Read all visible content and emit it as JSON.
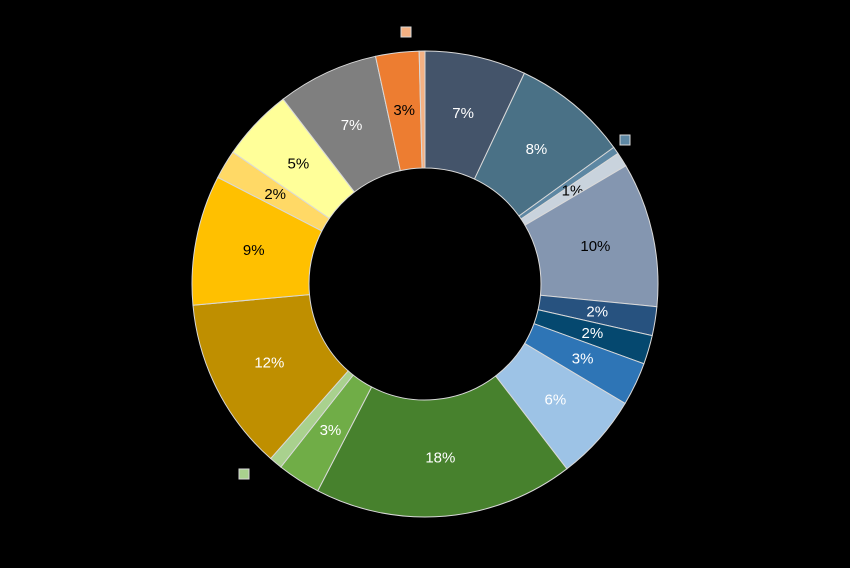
{
  "chart_data": {
    "type": "pie",
    "donut": true,
    "title": "",
    "legend": "none",
    "slices": [
      {
        "value": 7,
        "label": "7%",
        "color": "#44546A",
        "label_color": "#FFFFFF"
      },
      {
        "value": 8,
        "label": "8%",
        "color": "#4A7186",
        "label_color": "#FFFFFF"
      },
      {
        "value": 0.5,
        "label": "",
        "color": "#5D87A3",
        "label_color": "#FFFFFF"
      },
      {
        "value": 1,
        "label": "1%",
        "color": "#C9D3DD",
        "label_color": "#000000"
      },
      {
        "value": 10,
        "label": "10%",
        "color": "#8496B0",
        "label_color": "#000000"
      },
      {
        "value": 2,
        "label": "2%",
        "color": "#27527F",
        "label_color": "#FFFFFF"
      },
      {
        "value": 2,
        "label": "2%",
        "color": "#05486F",
        "label_color": "#FFFFFF"
      },
      {
        "value": 3,
        "label": "3%",
        "color": "#2E75B6",
        "label_color": "#FFFFFF"
      },
      {
        "value": 6,
        "label": "6%",
        "color": "#9DC3E6",
        "label_color": "#FFFFFF"
      },
      {
        "value": 18,
        "label": "18%",
        "color": "#47812D",
        "label_color": "#FFFFFF"
      },
      {
        "value": 3,
        "label": "3%",
        "color": "#70AD47",
        "label_color": "#FFFFFF"
      },
      {
        "value": 0.9,
        "label": "",
        "color": "#A9D18E",
        "label_color": "#000000"
      },
      {
        "value": 12,
        "label": "12%",
        "color": "#BF8F00",
        "label_color": "#FFFFFF"
      },
      {
        "value": 9,
        "label": "9%",
        "color": "#FFC000",
        "label_color": "#000000"
      },
      {
        "value": 2,
        "label": "2%",
        "color": "#FFD966",
        "label_color": "#000000"
      },
      {
        "value": 5,
        "label": "5%",
        "color": "#FFFF99",
        "label_color": "#000000"
      },
      {
        "value": 7,
        "label": "7%",
        "color": "#7F7F7F",
        "label_color": "#FFFFFF"
      },
      {
        "value": 3,
        "label": "3%",
        "color": "#ED7D31",
        "label_color": "#000000"
      },
      {
        "value": 0.4,
        "label": "",
        "color": "#F4B183",
        "label_color": "#000000"
      }
    ],
    "markers": [
      {
        "color": "#F4B183"
      },
      {
        "color": "#5D87A3"
      },
      {
        "color": "#A9D18E"
      }
    ]
  }
}
